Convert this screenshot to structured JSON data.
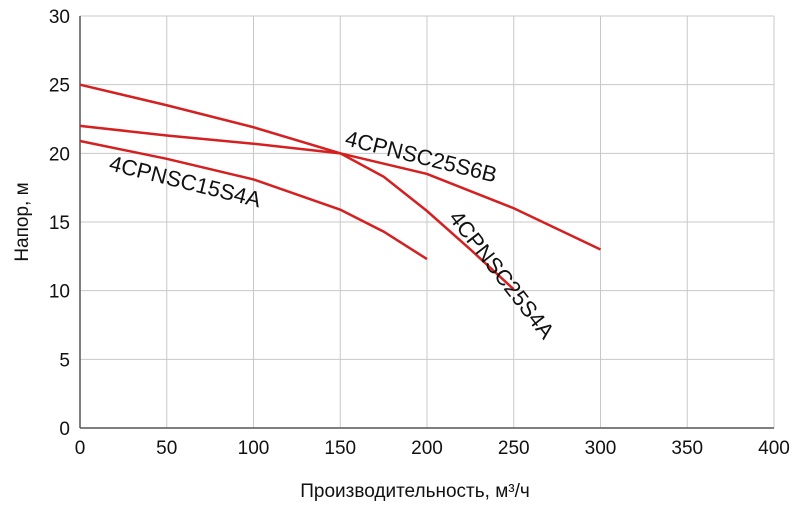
{
  "chart_data": {
    "type": "line",
    "x_label": "Производительность, м³/ч",
    "y_label": "Напор, м",
    "xlim": [
      0,
      400
    ],
    "xticks": [
      0,
      50,
      100,
      150,
      200,
      250,
      300,
      350,
      400
    ],
    "ylim": [
      0,
      30
    ],
    "yticks": [
      0,
      5,
      10,
      15,
      20,
      25,
      30
    ],
    "grid": true,
    "series": [
      {
        "name": "4CPNSC15S4A",
        "color": "#d42020",
        "x": [
          0,
          50,
          100,
          150,
          175,
          200
        ],
        "values": [
          20.9,
          19.6,
          18.1,
          15.9,
          14.3,
          12.3
        ]
      },
      {
        "name": "4CPNSC25S6B",
        "color": "#d42020",
        "x": [
          0,
          50,
          100,
          150,
          200,
          250,
          300
        ],
        "values": [
          22,
          21.3,
          20.7,
          20,
          18.5,
          16,
          13
        ]
      },
      {
        "name": "4CPNSC25S4A",
        "color": "#d42020",
        "x": [
          0,
          50,
          100,
          150,
          175,
          200,
          225,
          250
        ],
        "values": [
          25,
          23.5,
          21.9,
          20,
          18.3,
          15.8,
          13,
          10.1
        ]
      }
    ]
  }
}
